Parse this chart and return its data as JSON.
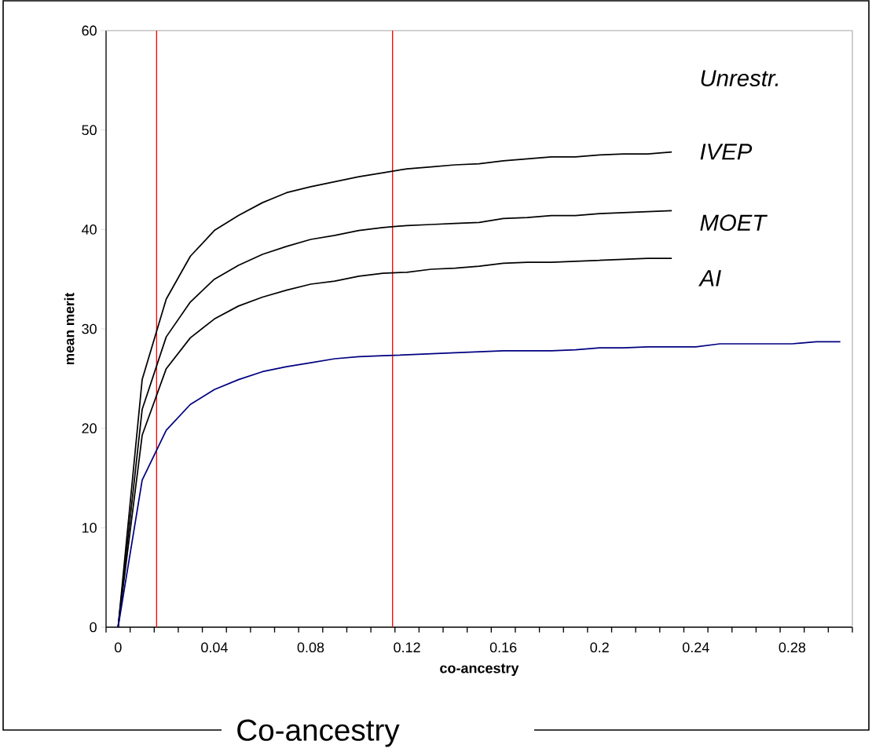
{
  "chart_data": {
    "type": "line",
    "xlabel": "co-ancestry",
    "ylabel": "mean merit",
    "x": [
      0,
      0.01,
      0.02,
      0.03,
      0.04,
      0.05,
      0.06,
      0.07,
      0.08,
      0.09,
      0.1,
      0.11,
      0.12,
      0.13,
      0.14,
      0.15,
      0.16,
      0.17,
      0.18,
      0.19,
      0.2,
      0.21,
      0.22,
      0.23,
      0.24,
      0.25,
      0.26,
      0.27,
      0.28,
      0.29,
      0.3
    ],
    "series": [
      {
        "color": "#000000",
        "values": [
          0,
          24.9,
          33.0,
          37.3,
          39.9,
          41.4,
          42.7,
          43.7,
          44.3,
          44.8,
          45.3,
          45.7,
          46.1,
          46.3,
          46.5,
          46.6,
          46.9,
          47.1,
          47.3,
          47.3,
          47.5,
          47.6,
          47.6,
          47.8,
          null,
          null,
          null,
          null,
          null,
          null,
          null
        ]
      },
      {
        "color": "#000000",
        "values": [
          0,
          21.9,
          29.2,
          32.7,
          35.0,
          36.4,
          37.5,
          38.3,
          39.0,
          39.4,
          39.9,
          40.2,
          40.4,
          40.5,
          40.6,
          40.7,
          41.1,
          41.2,
          41.4,
          41.4,
          41.6,
          41.7,
          41.8,
          41.9,
          null,
          null,
          null,
          null,
          null,
          null,
          null
        ]
      },
      {
        "color": "#000000",
        "values": [
          0,
          19.3,
          26.0,
          29.1,
          31.0,
          32.3,
          33.2,
          33.9,
          34.5,
          34.8,
          35.3,
          35.6,
          35.7,
          36.0,
          36.1,
          36.3,
          36.6,
          36.7,
          36.7,
          36.8,
          36.9,
          37.0,
          37.1,
          37.1,
          null,
          null,
          null,
          null,
          null,
          null,
          null
        ]
      },
      {
        "color": "#000080",
        "values": [
          0,
          14.8,
          19.8,
          22.4,
          23.9,
          24.9,
          25.7,
          26.2,
          26.6,
          27.0,
          27.2,
          27.3,
          27.4,
          27.5,
          27.6,
          27.7,
          27.8,
          27.8,
          27.8,
          27.9,
          28.1,
          28.1,
          28.2,
          28.2,
          28.2,
          28.5,
          28.5,
          28.5,
          28.5,
          28.7,
          28.7
        ]
      }
    ],
    "xlim": [
      -0.005,
      0.305
    ],
    "xticks": [
      {
        "value": -0.005,
        "label": null
      },
      0,
      {
        "value": 0.005,
        "label": null
      },
      {
        "value": 0.015,
        "label": null
      },
      {
        "value": 0.025,
        "label": null
      },
      {
        "value": 0.035,
        "label": null
      },
      0.04,
      {
        "value": 0.045,
        "label": null
      },
      {
        "value": 0.055,
        "label": null
      },
      {
        "value": 0.065,
        "label": null
      },
      {
        "value": 0.075,
        "label": null
      },
      0.08,
      {
        "value": 0.085,
        "label": null
      },
      {
        "value": 0.095,
        "label": null
      },
      {
        "value": 0.105,
        "label": null
      },
      {
        "value": 0.115,
        "label": null
      },
      0.12,
      {
        "value": 0.125,
        "label": null
      },
      {
        "value": 0.135,
        "label": null
      },
      {
        "value": 0.145,
        "label": null
      },
      {
        "value": 0.155,
        "label": null
      },
      0.16,
      {
        "value": 0.165,
        "label": null
      },
      {
        "value": 0.175,
        "label": null
      },
      {
        "value": 0.185,
        "label": null
      },
      {
        "value": 0.195,
        "label": null
      },
      0.2,
      {
        "value": 0.205,
        "label": null
      },
      {
        "value": 0.215,
        "label": null
      },
      {
        "value": 0.225,
        "label": null
      },
      {
        "value": 0.235,
        "label": null
      },
      0.24,
      {
        "value": 0.245,
        "label": null
      },
      {
        "value": 0.255,
        "label": null
      },
      {
        "value": 0.265,
        "label": null
      },
      {
        "value": 0.275,
        "label": null
      },
      0.28,
      {
        "value": 0.285,
        "label": null
      },
      {
        "value": 0.295,
        "label": null
      },
      {
        "value": 0.305,
        "label": null
      }
    ],
    "ylim": [
      0,
      60
    ],
    "yticks": [
      0,
      10,
      20,
      30,
      40,
      50,
      60
    ],
    "ref_lines": [
      {
        "axis": "x",
        "value": 0.016,
        "color": "#ff0000"
      },
      {
        "axis": "x",
        "value": 0.114,
        "color": "#ff0000"
      }
    ],
    "annotations": [
      "Unrestr.",
      "IVEP",
      "MOET",
      "AI",
      "Co-ancestry"
    ]
  }
}
